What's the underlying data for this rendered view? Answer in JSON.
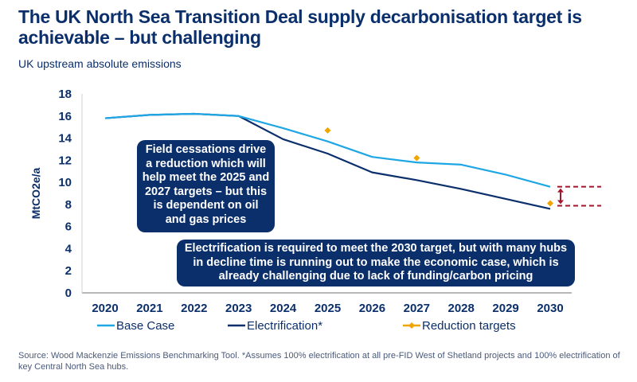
{
  "title": "The UK North Sea Transition Deal supply decarbonisation target is achievable – but challenging",
  "subtitle": "UK upstream absolute emissions",
  "annotations": [
    "Field cessations drive a reduction which will help meet the 2025 and 2027 targets – but this is dependent on oil and gas prices",
    "Electrification is required to meet the 2030 target, but with many hubs in decline time is running out to make the economic case, which is already challenging due to lack of funding/carbon pricing"
  ],
  "source": "Source: Wood Mackenzie Emissions Benchmarking Tool. *Assumes 100% electrification at all pre-FID West of Shetland projects and 100% electrification of key Central North Sea hubs.",
  "colors": {
    "base_case": "#1ea7e4",
    "electrification": "#0b2f6b",
    "targets": "#f0a500",
    "gap_marker": "#a0162d"
  },
  "chart_data": {
    "type": "line",
    "title": "",
    "xlabel": "",
    "ylabel": "MtCO2e/a",
    "ylim": [
      0,
      18
    ],
    "yticks": [
      0,
      2,
      4,
      6,
      8,
      10,
      12,
      14,
      16,
      18
    ],
    "x": [
      "2020",
      "2021",
      "2022",
      "2023",
      "2024",
      "2025",
      "2026",
      "2027",
      "2028",
      "2029",
      "2030"
    ],
    "grid": false,
    "legend": "bottom",
    "series": [
      {
        "name": "Base Case",
        "values": [
          15.8,
          16.1,
          16.2,
          16.0,
          14.9,
          13.7,
          12.3,
          11.8,
          11.6,
          10.7,
          9.6
        ]
      },
      {
        "name": "Electrification*",
        "values": [
          15.8,
          16.1,
          16.2,
          16.0,
          13.9,
          12.6,
          10.9,
          10.2,
          9.4,
          8.5,
          7.6
        ]
      },
      {
        "name": "Reduction targets",
        "type": "scatter",
        "points": [
          [
            "2025",
            14.7
          ],
          [
            "2027",
            12.2
          ],
          [
            "2030",
            8.1
          ]
        ]
      }
    ]
  }
}
